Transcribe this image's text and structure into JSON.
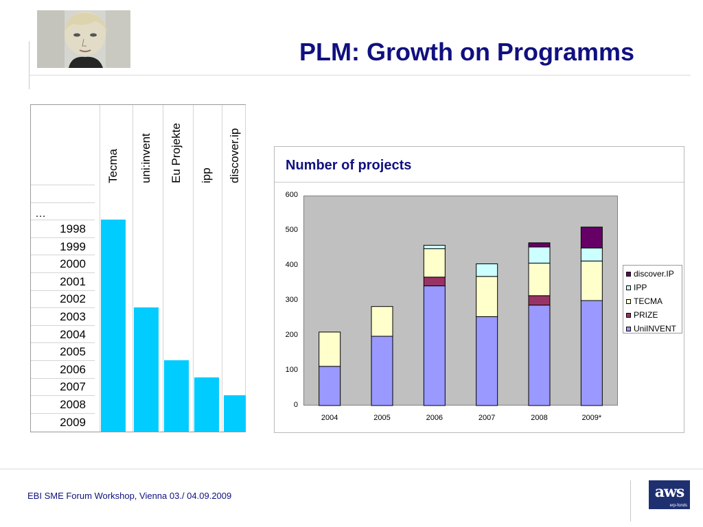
{
  "slide": {
    "title": "PLM: Growth on Programms",
    "footer": "EBI SME Forum Workshop, Vienna 03./ 04.09.2009",
    "logo_text": "aws",
    "logo_subtext": "erp-fonds"
  },
  "timeline_table": {
    "row_ellipsis": "…",
    "years": [
      "1998",
      "1999",
      "2000",
      "2001",
      "2002",
      "2003",
      "2004",
      "2005",
      "2006",
      "2007",
      "2008",
      "2009"
    ],
    "programs": [
      {
        "name": "Tecma",
        "start_year": "1998"
      },
      {
        "name": "uni:invent",
        "start_year": "2003"
      },
      {
        "name": "Eu Projekte",
        "start_year": "2006"
      },
      {
        "name": "ipp",
        "start_year": "2007"
      },
      {
        "name": "discover.ip",
        "start_year": "2008"
      }
    ],
    "bar_color": "#00ccff"
  },
  "chart_data": {
    "type": "bar",
    "stacked": true,
    "title": "Number of projects",
    "categories": [
      "2004",
      "2005",
      "2006",
      "2007",
      "2008",
      "2009*"
    ],
    "series": [
      {
        "name": "UniINVENT",
        "color": "#9999ff",
        "values": [
          112,
          198,
          342,
          254,
          287,
          300
        ]
      },
      {
        "name": "PRIZE",
        "color": "#993366",
        "values": [
          0,
          0,
          25,
          0,
          27,
          0
        ]
      },
      {
        "name": "TECMA",
        "color": "#ffffcc",
        "values": [
          98,
          85,
          81,
          115,
          93,
          113
        ]
      },
      {
        "name": "IPP",
        "color": "#ccffff",
        "values": [
          0,
          0,
          10,
          36,
          46,
          37
        ]
      },
      {
        "name": "discover.IP",
        "color": "#660066",
        "values": [
          0,
          0,
          0,
          0,
          12,
          60
        ]
      }
    ],
    "legend_order": [
      "discover.IP",
      "IPP",
      "TECMA",
      "PRIZE",
      "UniINVENT"
    ],
    "ylim": [
      0,
      600
    ],
    "yticks": [
      "0",
      "100",
      "200",
      "300",
      "400",
      "500",
      "600"
    ],
    "grid": false,
    "legend_position": "right"
  }
}
